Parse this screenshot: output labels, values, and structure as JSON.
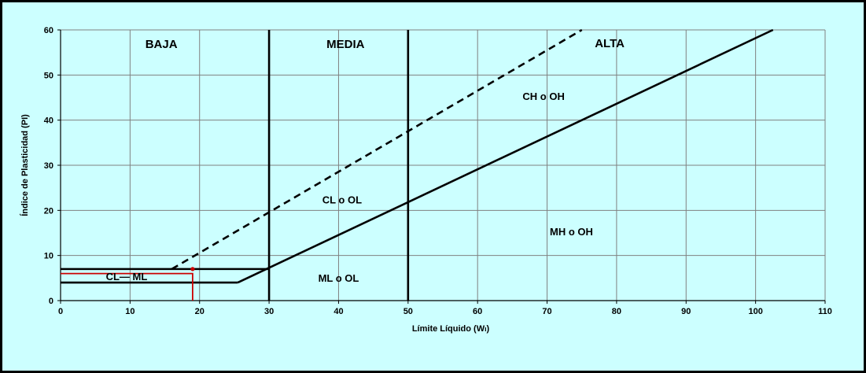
{
  "chart_data": {
    "type": "line",
    "xlabel": "Límite Líquido (Wₗ)",
    "ylabel": "Índice de Plasticidad (PI)",
    "xlim": [
      0,
      110
    ],
    "ylim": [
      0,
      60
    ],
    "x_ticks": [
      0,
      10,
      20,
      30,
      40,
      50,
      60,
      70,
      80,
      90,
      100,
      110
    ],
    "y_ticks": [
      0,
      10,
      20,
      30,
      40,
      50,
      60
    ],
    "grid": true,
    "colors": {
      "background": "#ccffff",
      "grid": "#808080",
      "lines": "#000000",
      "marker": "#cc0000"
    },
    "zone_labels": [
      {
        "text": "BAJA",
        "x": 14.5,
        "y": 56
      },
      {
        "text": "MEDIA",
        "x": 41,
        "y": 56
      },
      {
        "text": "ALTA",
        "x": 79,
        "y": 56.2
      }
    ],
    "region_labels": [
      {
        "text": "CH  o OH",
        "x": 69.5,
        "y": 44.5
      },
      {
        "text": "CL  o  OL",
        "x": 40.5,
        "y": 21.5
      },
      {
        "text": "MH  o OH",
        "x": 73.5,
        "y": 14.5
      },
      {
        "text": "ML  o  OL",
        "x": 40,
        "y": 4.2
      },
      {
        "text": "CL— ML",
        "x": 9.5,
        "y": 4.5
      }
    ],
    "series": [
      {
        "style": "solid",
        "points": [
          [
            25.5,
            4
          ],
          [
            102.5,
            60
          ]
        ]
      },
      {
        "style": "dashed",
        "points": [
          [
            16,
            7
          ],
          [
            75,
            60
          ]
        ]
      },
      {
        "style": "solid",
        "points": [
          [
            30,
            0
          ],
          [
            30,
            60
          ]
        ]
      },
      {
        "style": "solid",
        "points": [
          [
            50,
            0
          ],
          [
            50,
            60
          ]
        ]
      },
      {
        "style": "solid",
        "points": [
          [
            0,
            7
          ],
          [
            30,
            7
          ]
        ]
      },
      {
        "style": "solid",
        "points": [
          [
            0,
            4
          ],
          [
            25.5,
            4
          ]
        ]
      }
    ],
    "marker_point": {
      "x": 19,
      "y": 6
    }
  }
}
